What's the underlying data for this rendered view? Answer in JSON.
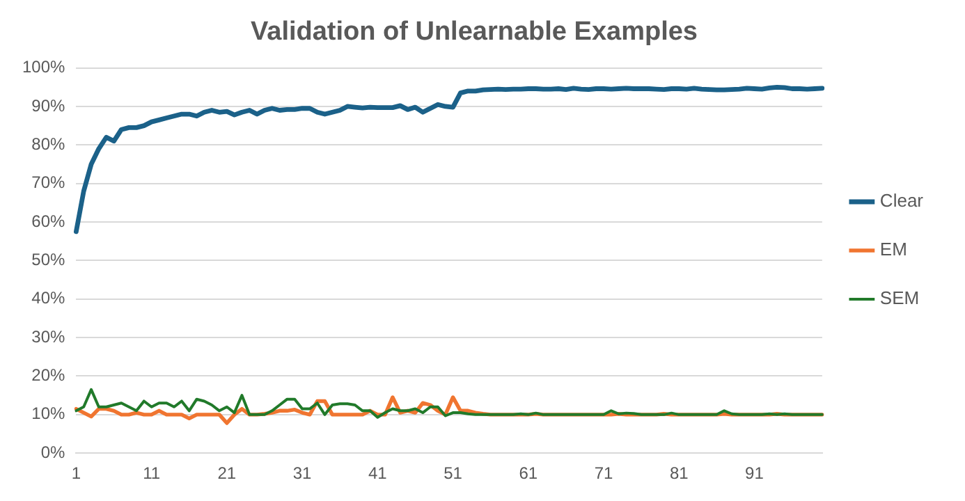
{
  "chart_data": {
    "type": "line",
    "title": "Validation of Unlearnable Examples",
    "categories": [
      "1",
      null,
      null,
      null,
      null,
      null,
      null,
      null,
      null,
      null,
      "11",
      null,
      null,
      null,
      null,
      null,
      null,
      null,
      null,
      null,
      "21",
      null,
      null,
      null,
      null,
      null,
      null,
      null,
      null,
      null,
      "31",
      null,
      null,
      null,
      null,
      null,
      null,
      null,
      null,
      null,
      "41",
      null,
      null,
      null,
      null,
      null,
      null,
      null,
      null,
      null,
      "51",
      null,
      null,
      null,
      null,
      null,
      null,
      null,
      null,
      null,
      "61",
      null,
      null,
      null,
      null,
      null,
      null,
      null,
      null,
      null,
      "71",
      null,
      null,
      null,
      null,
      null,
      null,
      null,
      null,
      null,
      "81",
      null,
      null,
      null,
      null,
      null,
      null,
      null,
      null,
      null,
      "91",
      null,
      null,
      null,
      null,
      null,
      null,
      null,
      null,
      null
    ],
    "series": [
      {
        "name": "Clear",
        "color": "#1b6189",
        "values": [
          57.5,
          68,
          75,
          79,
          82,
          81,
          84,
          84.5,
          84.5,
          85,
          86,
          86.5,
          87,
          87.5,
          88,
          88,
          87.5,
          88.5,
          89,
          88.5,
          88.7,
          87.8,
          88.5,
          89,
          88,
          89,
          89.5,
          89,
          89.2,
          89.2,
          89.5,
          89.5,
          88.5,
          88,
          88.5,
          89,
          90,
          89.8,
          89.6,
          89.8,
          89.7,
          89.7,
          89.7,
          90.2,
          89.2,
          89.8,
          88.5,
          89.5,
          90.5,
          90,
          89.8,
          93.5,
          94,
          94,
          94.3,
          94.4,
          94.5,
          94.4,
          94.5,
          94.5,
          94.6,
          94.6,
          94.5,
          94.5,
          94.6,
          94.4,
          94.7,
          94.5,
          94.4,
          94.6,
          94.6,
          94.5,
          94.6,
          94.7,
          94.6,
          94.6,
          94.6,
          94.5,
          94.4,
          94.6,
          94.6,
          94.5,
          94.7,
          94.5,
          94.4,
          94.3,
          94.3,
          94.4,
          94.5,
          94.7,
          94.6,
          94.5,
          94.8,
          95,
          94.9,
          94.6,
          94.6,
          94.5,
          94.6,
          94.7
        ]
      },
      {
        "name": "EM",
        "color": "#f07530",
        "values": [
          11.5,
          10.5,
          9.5,
          11.5,
          11.5,
          11,
          10,
          10,
          10.5,
          10,
          10,
          11,
          10,
          10,
          10,
          9,
          10,
          10,
          10,
          10,
          7.8,
          10,
          11.5,
          10,
          10,
          10.2,
          10.5,
          11,
          11,
          11.3,
          10.5,
          10,
          13.5,
          13.5,
          10,
          10,
          10,
          10,
          10,
          11,
          10,
          10,
          14.5,
          10.5,
          11,
          10.5,
          13,
          12.5,
          11,
          10,
          14.5,
          11,
          11,
          10.5,
          10.2,
          10,
          10,
          10,
          10,
          10,
          10,
          10.2,
          10,
          10,
          10,
          10,
          10,
          10,
          10,
          10,
          10,
          10,
          10.2,
          10,
          10,
          10,
          10,
          10,
          10.2,
          10,
          10,
          10,
          10,
          10,
          10,
          10,
          10.2,
          10,
          10,
          10,
          10,
          10,
          10,
          10.2,
          10,
          10,
          10,
          10,
          10,
          10
        ]
      },
      {
        "name": "SEM",
        "color": "#217a2a",
        "values": [
          11,
          12,
          16.5,
          12,
          12,
          12.5,
          13,
          12,
          11,
          13.5,
          12,
          13,
          13,
          12,
          13.5,
          11,
          14,
          13.5,
          12.5,
          11,
          12,
          10.5,
          15,
          10,
          10,
          10,
          11,
          12.5,
          14,
          14,
          11.5,
          11.5,
          13,
          10,
          12.5,
          12.8,
          12.8,
          12.5,
          11,
          11,
          9.3,
          10.5,
          11.5,
          11,
          11,
          11.5,
          10.5,
          12,
          12,
          9.7,
          10.5,
          10.5,
          10.2,
          10,
          10,
          10,
          10,
          10,
          10,
          10.2,
          10,
          10.4,
          10,
          10,
          10,
          10,
          10,
          10,
          10,
          10,
          10,
          11,
          10.2,
          10.4,
          10.3,
          10,
          10,
          10,
          10,
          10.4,
          10,
          10,
          10,
          10,
          10,
          10,
          11,
          10.2,
          10,
          10,
          10,
          10,
          10.2,
          10,
          10.2,
          10,
          10,
          10,
          10,
          10
        ]
      }
    ],
    "ylim": [
      0,
      100
    ],
    "yticks": [
      {
        "value": 0,
        "label": "0%"
      },
      {
        "value": 10,
        "label": "10%"
      },
      {
        "value": 20,
        "label": "20%"
      },
      {
        "value": 30,
        "label": "30%"
      },
      {
        "value": 40,
        "label": "40%"
      },
      {
        "value": 50,
        "label": "50%"
      },
      {
        "value": 60,
        "label": "60%"
      },
      {
        "value": 70,
        "label": "70%"
      },
      {
        "value": 80,
        "label": "80%"
      },
      {
        "value": 90,
        "label": "90%"
      },
      {
        "value": 100,
        "label": "100%"
      }
    ],
    "grid": "y",
    "legend": "right",
    "marker": "none",
    "line_style": "solid"
  }
}
